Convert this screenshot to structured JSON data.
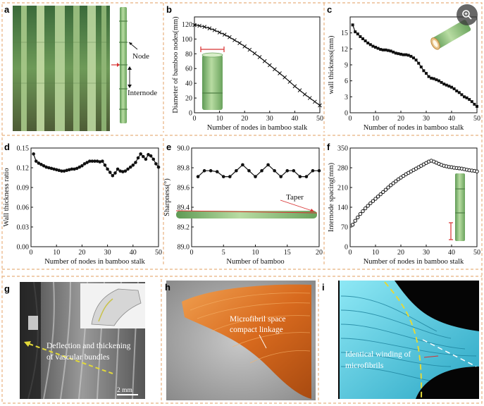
{
  "panels": {
    "a": {
      "letter": "a",
      "node_label": "Node",
      "internode_label": "Internode"
    },
    "g": {
      "letter": "g",
      "annotation_line1": "Deflection and thickening",
      "annotation_line2": "of vascular bundles",
      "scale_bar": "2 mm"
    },
    "h": {
      "letter": "h",
      "annotation_line1": "Microfibril space",
      "annotation_line2": "compact linkage"
    },
    "i": {
      "letter": "i",
      "annotation_line1": "Identical winding of",
      "annotation_line2": "microfibrils"
    }
  },
  "chart_data": [
    {
      "id": "b",
      "letter": "b",
      "type": "line",
      "xlabel": "Number of nodes in bamboo stalk",
      "ylabel": "Diameter of bamboo nodes(mm)",
      "xlim": [
        0,
        50
      ],
      "ylim": [
        0,
        130
      ],
      "xticks": [
        0,
        10,
        20,
        30,
        40,
        50
      ],
      "yticks": [
        0,
        20,
        40,
        60,
        80,
        100,
        120
      ],
      "marker": "x",
      "series": [
        {
          "values_x": [
            0,
            2,
            4,
            6,
            8,
            10,
            12,
            14,
            16,
            18,
            20,
            22,
            24,
            26,
            28,
            30,
            32,
            34,
            36,
            38,
            40,
            42,
            44,
            46,
            48,
            50
          ],
          "values_y": [
            119,
            118,
            116.5,
            114.5,
            112,
            109,
            106,
            102.5,
            98.5,
            94.5,
            90,
            85.5,
            80.5,
            75.5,
            70,
            64.5,
            59,
            53.5,
            48,
            42,
            36,
            30.5,
            25,
            20,
            15,
            10
          ]
        }
      ]
    },
    {
      "id": "c",
      "letter": "c",
      "type": "line",
      "xlabel": "Number of nodes in bamboo stalk",
      "ylabel": "wall thickness(mm)",
      "xlim": [
        0,
        50
      ],
      "ylim": [
        0,
        18
      ],
      "xticks": [
        0,
        10,
        20,
        30,
        40,
        50
      ],
      "yticks": [
        0,
        3,
        6,
        9,
        12,
        15
      ],
      "marker": "square",
      "series": [
        {
          "values_x": [
            1,
            2,
            3,
            4,
            5,
            6,
            7,
            8,
            9,
            10,
            11,
            12,
            13,
            14,
            15,
            16,
            17,
            18,
            19,
            20,
            21,
            22,
            23,
            24,
            25,
            26,
            27,
            28,
            29,
            30,
            31,
            32,
            33,
            34,
            35,
            36,
            37,
            38,
            39,
            40,
            41,
            42,
            43,
            44,
            45,
            46,
            47,
            48,
            49,
            50
          ],
          "values_y": [
            16.5,
            15.2,
            14.8,
            14.3,
            13.9,
            13.5,
            13.1,
            12.8,
            12.5,
            12.3,
            12.1,
            11.9,
            11.8,
            11.8,
            11.7,
            11.6,
            11.4,
            11.2,
            11.1,
            11.0,
            10.9,
            10.9,
            10.8,
            10.6,
            10.3,
            9.9,
            9.3,
            8.6,
            7.9,
            7.4,
            6.8,
            6.5,
            6.4,
            6.2,
            6.0,
            5.7,
            5.4,
            5.2,
            5.0,
            4.8,
            4.5,
            4.1,
            3.8,
            3.4,
            3.0,
            2.8,
            2.5,
            2.1,
            1.6,
            1.2
          ]
        }
      ]
    },
    {
      "id": "d",
      "letter": "d",
      "type": "line",
      "xlabel": "Number of nodes in bamboo stalk",
      "ylabel": "Wall thickness ratio",
      "xlim": [
        0,
        50
      ],
      "ylim": [
        0.0,
        0.15
      ],
      "xticks": [
        0,
        10,
        20,
        30,
        40,
        50
      ],
      "yticks": [
        0.0,
        0.03,
        0.06,
        0.09,
        0.12,
        0.15
      ],
      "ytick_labels": [
        "0.00",
        "0.03",
        "0.06",
        "0.09",
        "0.12",
        "0.15"
      ],
      "marker": "dot",
      "series": [
        {
          "values_x": [
            1,
            2,
            3,
            4,
            5,
            6,
            7,
            8,
            9,
            10,
            11,
            12,
            13,
            14,
            15,
            16,
            17,
            18,
            19,
            20,
            21,
            22,
            23,
            24,
            25,
            26,
            27,
            28,
            29,
            30,
            31,
            32,
            33,
            34,
            35,
            36,
            37,
            38,
            39,
            40,
            41,
            42,
            43,
            44,
            45,
            46,
            47,
            48,
            49,
            50
          ],
          "values_y": [
            0.141,
            0.13,
            0.127,
            0.125,
            0.123,
            0.121,
            0.12,
            0.119,
            0.118,
            0.117,
            0.116,
            0.115,
            0.115,
            0.116,
            0.117,
            0.118,
            0.118,
            0.119,
            0.121,
            0.123,
            0.126,
            0.128,
            0.13,
            0.13,
            0.13,
            0.13,
            0.129,
            0.13,
            0.124,
            0.118,
            0.113,
            0.108,
            0.112,
            0.118,
            0.115,
            0.114,
            0.115,
            0.118,
            0.121,
            0.124,
            0.128,
            0.135,
            0.141,
            0.137,
            0.133,
            0.14,
            0.138,
            0.133,
            0.126,
            0.121
          ]
        }
      ]
    },
    {
      "id": "e",
      "letter": "e",
      "type": "line",
      "xlabel": "Number of bamboo",
      "ylabel": "Sharpness(°)",
      "xlim": [
        0,
        20
      ],
      "ylim": [
        89.0,
        90.0
      ],
      "xticks": [
        0,
        5,
        10,
        15,
        20
      ],
      "yticks": [
        89.0,
        89.2,
        89.4,
        89.6,
        89.8,
        90.0
      ],
      "ytick_labels": [
        "89.0",
        "89.2",
        "89.4",
        "89.6",
        "89.8",
        "90.0"
      ],
      "marker": "dot",
      "annotation": "Taper",
      "series": [
        {
          "values_x": [
            1,
            2,
            3,
            4,
            5,
            6,
            7,
            8,
            9,
            10,
            11,
            12,
            13,
            14,
            15,
            16,
            17,
            18,
            19,
            20
          ],
          "values_y": [
            89.71,
            89.77,
            89.77,
            89.76,
            89.71,
            89.71,
            89.77,
            89.83,
            89.77,
            89.71,
            89.77,
            89.83,
            89.77,
            89.71,
            89.77,
            89.77,
            89.71,
            89.71,
            89.77,
            89.77
          ]
        }
      ]
    },
    {
      "id": "f",
      "letter": "f",
      "type": "line",
      "xlabel": "Number of nodes in bamboo stalk",
      "ylabel": "Internode spacing(mm)",
      "xlim": [
        0,
        50
      ],
      "ylim": [
        0,
        350
      ],
      "xticks": [
        0,
        10,
        20,
        30,
        40,
        50
      ],
      "yticks": [
        0,
        70,
        140,
        210,
        280,
        350
      ],
      "marker": "circle",
      "series": [
        {
          "values_x": [
            1,
            2,
            3,
            4,
            5,
            6,
            7,
            8,
            9,
            10,
            11,
            12,
            13,
            14,
            15,
            16,
            17,
            18,
            19,
            20,
            21,
            22,
            23,
            24,
            25,
            26,
            27,
            28,
            29,
            30,
            31,
            32,
            33,
            34,
            35,
            36,
            37,
            38,
            39,
            40,
            41,
            42,
            43,
            44,
            45,
            46,
            47,
            48,
            49,
            50
          ],
          "values_y": [
            78,
            92,
            104,
            116,
            126,
            136,
            145,
            154,
            162,
            170,
            178,
            186,
            194,
            202,
            210,
            218,
            225,
            232,
            239,
            245,
            251,
            257,
            262,
            267,
            272,
            277,
            282,
            287,
            292,
            297,
            302,
            305,
            302,
            298,
            294,
            290,
            287,
            285,
            283,
            282,
            280,
            279,
            278,
            277,
            275,
            273,
            271,
            270,
            269,
            267
          ]
        }
      ]
    }
  ],
  "colors": {
    "divider": "#e8b17e",
    "accent_red": "#d83030",
    "bamboo_green": "#8fbf78",
    "micro_orange": "#d86a1e",
    "micro_cyan": "#5ed3e8",
    "guide_yellow": "#e2d93a"
  }
}
